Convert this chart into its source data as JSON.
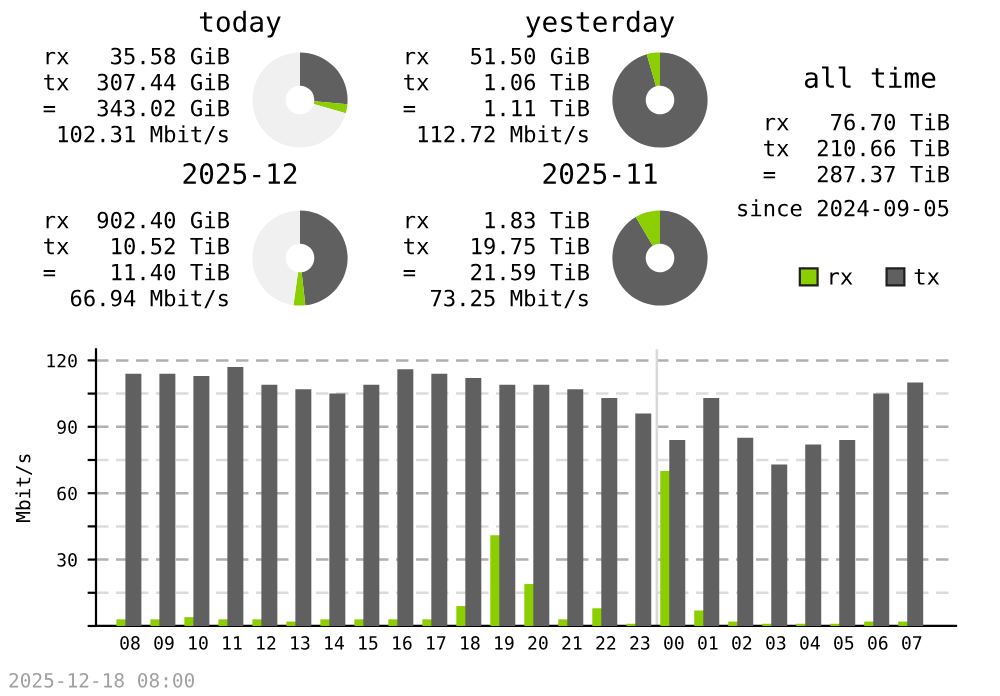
{
  "chart_data": [
    {
      "type": "donut",
      "title": "today",
      "categories": [
        null,
        null,
        null
      ],
      "values": [
        26.4,
        3.1,
        70.5
      ],
      "colors": [
        "#606060",
        "#8ccf00",
        "#f0f0f0"
      ],
      "annotations": [
        "rx 35.58 GiB",
        "tx 307.44 GiB",
        "= 343.02 GiB",
        "102.31 Mbit/s"
      ]
    },
    {
      "type": "donut",
      "title": "yesterday",
      "categories": [
        null,
        null
      ],
      "values": [
        95.5,
        4.5
      ],
      "colors": [
        "#606060",
        "#8ccf00"
      ],
      "annotations": [
        "rx 51.50 GiB",
        "tx 1.06 TiB",
        "= 1.11 TiB",
        "112.72 Mbit/s"
      ]
    },
    {
      "type": "other",
      "title": "all time",
      "annotations": [
        "rx 76.70 TiB",
        "tx 210.66 TiB",
        "= 287.37 TiB",
        "since 2024-09-05"
      ]
    },
    {
      "type": "donut",
      "title": "2025-12",
      "categories": [
        null,
        null,
        null
      ],
      "values": [
        48.2,
        4.0,
        47.8
      ],
      "colors": [
        "#606060",
        "#8ccf00",
        "#f0f0f0"
      ],
      "annotations": [
        "rx 902.40 GiB",
        "tx 10.52 TiB",
        "= 11.40 TiB",
        "66.94 Mbit/s"
      ]
    },
    {
      "type": "donut",
      "title": "2025-11",
      "categories": [
        null,
        null
      ],
      "values": [
        91.5,
        8.5
      ],
      "colors": [
        "#606060",
        "#8ccf00"
      ],
      "annotations": [
        "rx 1.83 TiB",
        "tx 19.75 TiB",
        "= 21.59 TiB",
        "73.25 Mbit/s"
      ]
    },
    {
      "type": "bar",
      "ylabel": "Mbit/s",
      "legend": "top right",
      "grid": "y",
      "categories": [
        "08",
        "09",
        "10",
        "11",
        "12",
        "13",
        "14",
        "15",
        "16",
        "17",
        "18",
        "19",
        "20",
        "21",
        "22",
        "23",
        "00",
        "01",
        "02",
        "03",
        "04",
        "05",
        "06",
        "07"
      ],
      "series": [
        {
          "name": "rx",
          "color": "#8ccf00",
          "values": [
            3,
            3,
            4,
            3,
            3,
            2,
            3,
            3,
            3,
            3,
            9,
            41,
            19,
            3,
            8,
            1,
            70,
            7,
            2,
            1,
            1,
            1,
            2,
            2
          ]
        },
        {
          "name": "tx",
          "color": "#606060",
          "values": [
            114,
            114,
            113,
            117,
            109,
            107,
            105,
            109,
            116,
            114,
            112,
            109,
            109,
            107,
            103,
            96,
            84,
            103,
            85,
            73,
            82,
            84,
            105,
            110
          ]
        }
      ],
      "ylim": [
        0,
        125
      ],
      "yticks": [
        {
          "value": 0,
          "label": null
        },
        {
          "value": 15,
          "label": null
        },
        30,
        {
          "value": 45,
          "label": null
        },
        60,
        {
          "value": 75,
          "label": null
        },
        90,
        {
          "value": 105,
          "label": null
        },
        120
      ],
      "ref_lines": [
        {
          "axis": "x",
          "value": "00",
          "color": "#d8d8d8"
        }
      ],
      "annotations": [
        "2025-12-18 08:00"
      ]
    }
  ]
}
